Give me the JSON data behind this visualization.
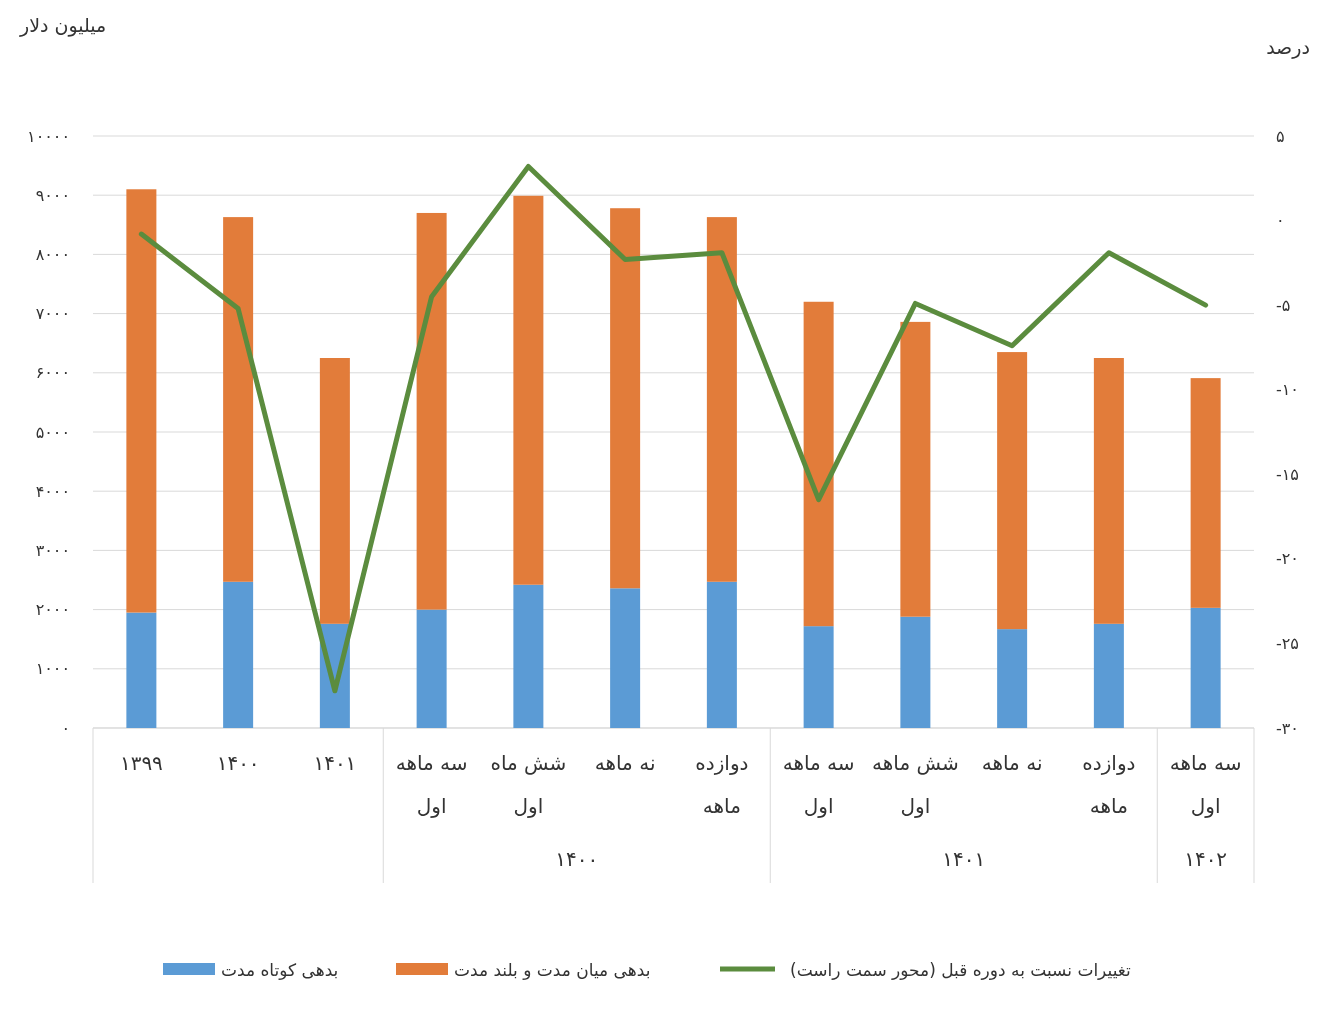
{
  "chart_data": {
    "type": "bar",
    "stacked": true,
    "ylabel": "میلیون دلار",
    "y2label": "درصد",
    "categories": [
      "۱۳۹۹",
      "۱۴۰۰",
      "۱۴۰۱",
      "سه ماهه اول",
      "شش ماه اول",
      "نه ماهه",
      "دوازده ماهه",
      "سه ماهه اول",
      "شش ماهه اول",
      "نه ماهه",
      "دوازده ماهه",
      "سه ماهه اول"
    ],
    "annotations": [
      "۱۴۰۰",
      "۱۴۰۱",
      "۱۴۰۲"
    ],
    "series": [
      {
        "name": "بدهی کوتاه مدت",
        "color": "#5b9bd5",
        "values": [
          1950,
          2470,
          1760,
          2000,
          2420,
          2360,
          2470,
          1720,
          1880,
          1670,
          1760,
          2030
        ]
      },
      {
        "name": "بدهی میان مدت و بلند مدت",
        "color": "#e27c3a",
        "values": [
          7150,
          6160,
          4490,
          6700,
          6570,
          6420,
          6160,
          5480,
          4980,
          4680,
          4490,
          3880
        ]
      },
      {
        "name": "تغییرات نسبت به دوره قبل (محور سمت راست)",
        "color": "#5b8c3e",
        "type": "line",
        "axis": "y2",
        "values": [
          -0.8,
          -5.2,
          -27.8,
          -4.5,
          3.2,
          -2.3,
          -1.9,
          -16.5,
          -4.9,
          -7.4,
          -1.9,
          -5
        ]
      }
    ],
    "ylim": [
      0,
      10000
    ],
    "yticks": [
      {
        "value": 0,
        "label": "۰"
      },
      {
        "value": 1000,
        "label": "۱۰۰۰"
      },
      {
        "value": 2000,
        "label": "۲۰۰۰"
      },
      {
        "value": 3000,
        "label": "۳۰۰۰"
      },
      {
        "value": 4000,
        "label": "۴۰۰۰"
      },
      {
        "value": 5000,
        "label": "۵۰۰۰"
      },
      {
        "value": 6000,
        "label": "۶۰۰۰"
      },
      {
        "value": 7000,
        "label": "۷۰۰۰"
      },
      {
        "value": 8000,
        "label": "۸۰۰۰"
      },
      {
        "value": 9000,
        "label": "۹۰۰۰"
      },
      {
        "value": 10000,
        "label": "۱۰۰۰۰"
      }
    ],
    "y2lim": [
      -30,
      5
    ],
    "y2ticks": [
      {
        "value": -30,
        "label": "-۳۰"
      },
      {
        "value": -25,
        "label": "-۲۵"
      },
      {
        "value": -20,
        "label": "-۲۰"
      },
      {
        "value": -15,
        "label": "-۱۵"
      },
      {
        "value": -10,
        "label": "-۱۰"
      },
      {
        "value": -5,
        "label": "-۵"
      },
      {
        "value": 0,
        "label": "۰"
      },
      {
        "value": 5,
        "label": "۵"
      }
    ],
    "grid": "y",
    "legend": "bottom"
  }
}
